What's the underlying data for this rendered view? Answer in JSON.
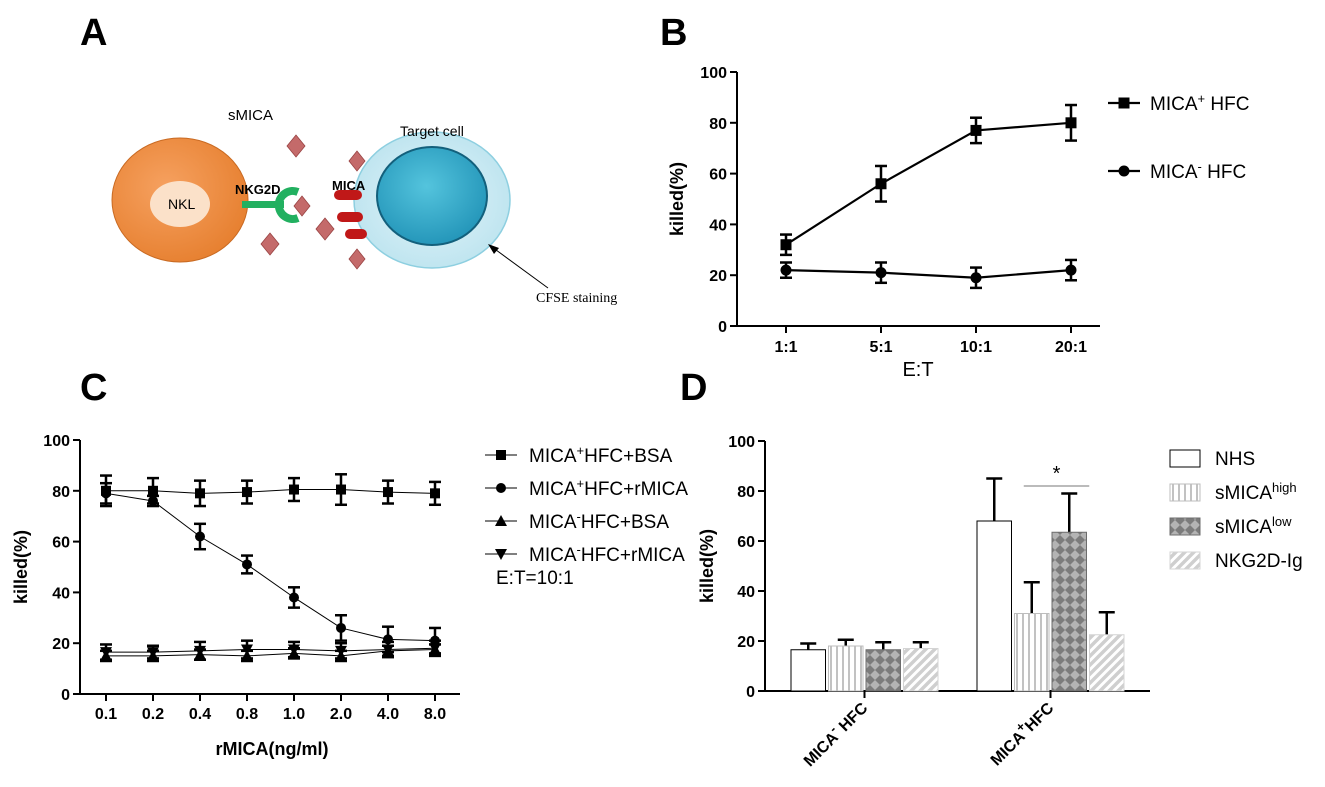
{
  "panels": {
    "A": {
      "letter": "A",
      "labels": {
        "smica": "sMICA",
        "target_cell": "Target cell",
        "nkl": "NKL",
        "nkg2d": "NKG2D",
        "mica": "MICA",
        "cfse": "CFSE staining"
      },
      "colors": {
        "nk_cell": "#ee8a3c",
        "target_cell": "#2aa3c4",
        "receptor": "#22b060",
        "ligand": "#c01818",
        "smica": "#c46a6a"
      }
    },
    "B": {
      "letter": "B"
    },
    "C": {
      "letter": "C",
      "annotation": "E:T=10:1"
    },
    "D": {
      "letter": "D",
      "significance": "*"
    }
  },
  "chart_data": [
    {
      "panel": "B",
      "type": "line",
      "categories": [
        "1:1",
        "5:1",
        "10:1",
        "20:1"
      ],
      "xlabel": "E:T",
      "ylabel": "killed(%)",
      "ylim": [
        0,
        100
      ],
      "yticks": [
        "0",
        "20",
        "40",
        "60",
        "80",
        "100"
      ],
      "legend_position": "right",
      "series": [
        {
          "name": "MICA",
          "sup": "+",
          "suffix": " HFC",
          "marker": "square",
          "values": [
            32,
            56,
            77,
            80
          ],
          "errors": [
            4,
            7,
            5,
            7
          ]
        },
        {
          "name": "MICA",
          "sup": "-",
          "suffix": " HFC",
          "marker": "circle",
          "values": [
            22,
            21,
            19,
            22
          ],
          "errors": [
            3,
            4,
            4,
            4
          ]
        }
      ]
    },
    {
      "panel": "C",
      "type": "line",
      "categories": [
        "0.1",
        "0.2",
        "0.4",
        "0.8",
        "1.0",
        "2.0",
        "4.0",
        "8.0"
      ],
      "xlabel": "rMICA(ng/ml)",
      "ylabel": "killed(%)",
      "ylim": [
        0,
        100
      ],
      "yticks": [
        "0",
        "20",
        "40",
        "60",
        "80",
        "100"
      ],
      "legend_position": "right",
      "series": [
        {
          "name": "MICA",
          "sup": "+",
          "suffix": "HFC+BSA",
          "marker": "square",
          "values": [
            80,
            80,
            79,
            79.5,
            80.5,
            80.5,
            79.5,
            79
          ],
          "errors": [
            6,
            5,
            5,
            4.5,
            4.5,
            6,
            4.5,
            4.5
          ]
        },
        {
          "name": "MICA",
          "sup": "+",
          "suffix": "HFC+rMICA",
          "marker": "circle",
          "values": [
            79,
            76,
            62,
            51,
            38,
            26,
            21.5,
            21
          ],
          "errors": [
            4,
            2,
            5,
            3.5,
            4,
            5,
            5,
            5
          ]
        },
        {
          "name": "MICA",
          "sup": "-",
          "suffix": "HFC+BSA",
          "marker": "triangle-up",
          "values": [
            15,
            15,
            15.5,
            15,
            16,
            15,
            17,
            17.5
          ],
          "errors": [
            2,
            2,
            2,
            2,
            2,
            2,
            2,
            2
          ]
        },
        {
          "name": "MICA",
          "sup": "-",
          "suffix": "HFC+rMICA",
          "marker": "triangle-down",
          "values": [
            16.5,
            16.5,
            17,
            17.5,
            17.5,
            17,
            17.5,
            18
          ],
          "errors": [
            3,
            2.5,
            3.5,
            3.5,
            3,
            3,
            3,
            3
          ]
        }
      ]
    },
    {
      "panel": "D",
      "type": "bar",
      "categories": [
        {
          "name": "MICA",
          "sup": "-",
          "suffix": " HFC"
        },
        {
          "name": "MICA",
          "sup": "+",
          "suffix": "HFC"
        }
      ],
      "ylabel": "killed(%)",
      "ylim": [
        0,
        100
      ],
      "yticks": [
        "0",
        "20",
        "40",
        "60",
        "80",
        "100"
      ],
      "legend_position": "right",
      "series": [
        {
          "name": "NHS",
          "sup": "",
          "pattern": "plain",
          "values": [
            16.5,
            68
          ],
          "errors": [
            2.5,
            17
          ]
        },
        {
          "name": "sMICA",
          "sup": "high",
          "pattern": "vertical-lines",
          "values": [
            18,
            31
          ],
          "errors": [
            2.5,
            12.5
          ]
        },
        {
          "name": "sMICA",
          "sup": "low",
          "pattern": "crosshatch",
          "values": [
            16.5,
            63.5
          ],
          "errors": [
            3,
            15.5
          ]
        },
        {
          "name": "NKG2D-Ig",
          "sup": "",
          "pattern": "diagonal",
          "values": [
            17,
            22.5
          ],
          "errors": [
            2.5,
            9
          ]
        }
      ]
    }
  ]
}
